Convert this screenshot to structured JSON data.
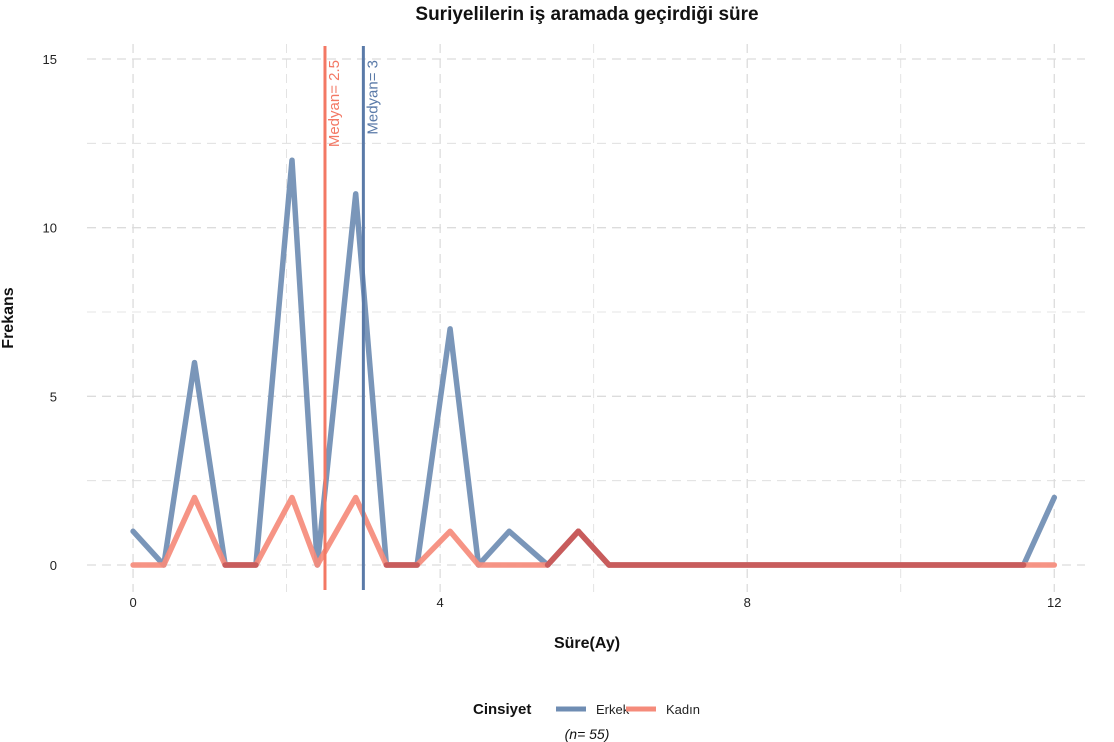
{
  "chart_data": {
    "type": "line",
    "title": "Suriyelilerin iş aramada geçirdiği süre",
    "xlabel": "Süre(Ay)",
    "ylabel": "Frekans",
    "xlim": [
      -0.6,
      12.4
    ],
    "ylim": [
      -0.8,
      15.8
    ],
    "x_ticks": [
      0,
      4,
      8,
      12
    ],
    "y_ticks": [
      0,
      5,
      10,
      15
    ],
    "grid": true,
    "legend_title": "Cinsiyet",
    "legend_position": "bottom",
    "note": "(n= 55)",
    "series": [
      {
        "name": "Erkek",
        "color": "#6f8db3",
        "x": [
          0,
          0.4,
          0.8,
          1.2,
          1.6,
          2.07,
          2.4,
          2.9,
          3.3,
          3.7,
          4.13,
          4.5,
          4.9,
          5.4,
          5.8,
          6.2,
          11.6,
          12
        ],
        "y": [
          1,
          0,
          6,
          0,
          0,
          12,
          0,
          11,
          0,
          0,
          7,
          0,
          1,
          0,
          1,
          0,
          0,
          2
        ]
      },
      {
        "name": "Kadın",
        "color": "#f58b7b",
        "x": [
          0,
          0.4,
          0.8,
          1.2,
          1.6,
          2.07,
          2.4,
          2.9,
          3.3,
          3.7,
          4.13,
          4.5,
          5.4,
          5.8,
          6.2,
          12
        ],
        "y": [
          0,
          0,
          2,
          0,
          0,
          2,
          0,
          2,
          0,
          0,
          1,
          0,
          0,
          1,
          0,
          0
        ]
      }
    ],
    "medians": [
      {
        "label": "Medyan=  2.5",
        "value": 2.5,
        "color": "#f37864"
      },
      {
        "label": "Medyan=  3",
        "value": 3,
        "color": "#5a7aa8"
      }
    ],
    "overlap_color": "#c85c5c"
  }
}
